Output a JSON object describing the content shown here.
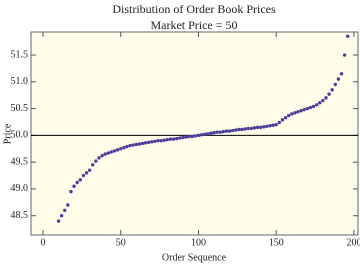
{
  "chart_data": {
    "type": "scatter",
    "title": "Distribution of Order Book Prices",
    "subtitle": "Market Price = 50",
    "x_label": "Order Sequence",
    "y_label": "Price",
    "series": [
      {
        "color": "#4b3f99",
        "x": [
          10,
          12,
          14,
          16,
          18,
          20,
          22,
          24,
          26,
          28,
          30,
          32,
          34,
          36,
          38,
          40,
          42,
          44,
          46,
          48,
          50,
          52,
          54,
          56,
          58,
          60,
          62,
          64,
          66,
          68,
          70,
          72,
          74,
          76,
          78,
          80,
          82,
          84,
          86,
          88,
          90,
          92,
          94,
          96,
          98,
          100,
          102,
          104,
          106,
          108,
          110,
          112,
          114,
          116,
          118,
          120,
          122,
          124,
          126,
          128,
          130,
          132,
          134,
          136,
          138,
          140,
          142,
          144,
          146,
          148,
          150,
          152,
          154,
          156,
          158,
          160,
          162,
          164,
          166,
          168,
          170,
          172,
          174,
          176,
          178,
          180,
          182,
          184,
          186,
          188,
          190,
          192,
          194,
          196
        ],
        "values": [
          48.4,
          48.5,
          48.6,
          48.7,
          48.95,
          49.05,
          49.12,
          49.17,
          49.25,
          49.3,
          49.35,
          49.45,
          49.52,
          49.58,
          49.62,
          49.65,
          49.67,
          49.69,
          49.71,
          49.73,
          49.75,
          49.77,
          49.79,
          49.81,
          49.82,
          49.83,
          49.84,
          49.85,
          49.86,
          49.87,
          49.88,
          49.89,
          49.9,
          49.9,
          49.91,
          49.92,
          49.93,
          49.93,
          49.94,
          49.95,
          49.96,
          49.97,
          49.98,
          49.98,
          49.99,
          50.0,
          50.01,
          50.02,
          50.03,
          50.04,
          50.05,
          50.06,
          50.06,
          50.07,
          50.08,
          50.08,
          50.09,
          50.1,
          50.11,
          50.11,
          50.12,
          50.13,
          50.13,
          50.14,
          50.15,
          50.15,
          50.16,
          50.17,
          50.18,
          50.19,
          50.2,
          50.24,
          50.29,
          50.33,
          50.37,
          50.4,
          50.42,
          50.44,
          50.46,
          50.48,
          50.5,
          50.52,
          50.54,
          50.57,
          50.61,
          50.65,
          50.7,
          50.77,
          50.85,
          50.95,
          51.05,
          51.15,
          51.5,
          51.85
        ]
      }
    ],
    "reference_line": 50,
    "xlim": [
      -7.7,
      202.6
    ],
    "xticks": [
      0,
      50,
      100,
      150,
      200
    ],
    "ylim": [
      48.14,
      51.93
    ],
    "yticks": [
      48.5,
      {
        "value": 49,
        "label": "49.0"
      },
      49.5,
      {
        "value": 50,
        "label": "50.0"
      },
      50.5,
      {
        "value": 51,
        "label": "51.0"
      },
      51.5
    ]
  }
}
